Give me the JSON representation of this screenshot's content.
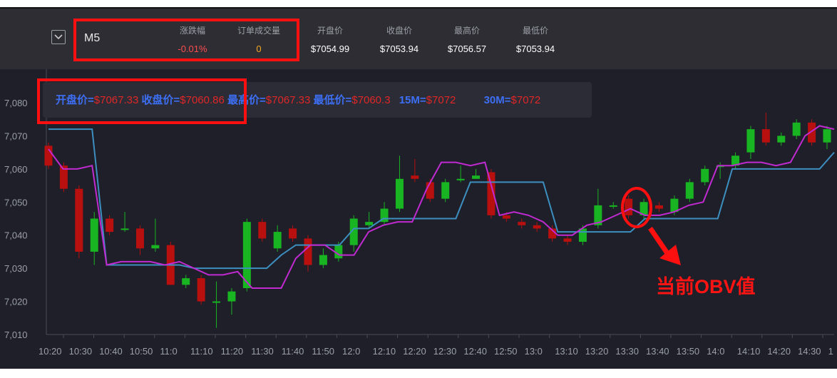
{
  "header": {
    "symbol": "M5",
    "stats": [
      {
        "label": "涨跌幅",
        "value": "-0.01%",
        "color": "#ff4d4f"
      },
      {
        "label": "订单成交量",
        "value": "0",
        "color": "#f5a623"
      },
      {
        "label": "开盘价",
        "value": "$7054.99",
        "color": "#ffffff"
      },
      {
        "label": "收盘价",
        "value": "$7053.94",
        "color": "#ffffff"
      },
      {
        "label": "最高价",
        "value": "$7056.57",
        "color": "#ffffff"
      },
      {
        "label": "最低价",
        "value": "$7053.94",
        "color": "#ffffff"
      }
    ]
  },
  "overlay": {
    "open_label": "开盘价=",
    "open_value": "$7067.33",
    "close_label": "收盘价=",
    "close_value": "$7060.86",
    "high_label": "最高价=",
    "high_value": "$7067.33",
    "low_label": "最低价=",
    "low_value": "$7060.3",
    "ma15_label": "15M=",
    "ma15_value": "$7072",
    "ma30_label": "30M=",
    "ma30_value": "$7072"
  },
  "annotation": "当前OBV值",
  "colors": {
    "up": "#19b421",
    "down": "#b80f0f",
    "line_purple": "#c02ad0",
    "line_blue": "#3d8fc0",
    "accent_red": "#ff1010"
  },
  "chart_data": {
    "type": "candlestick",
    "ylim": [
      7010,
      7082
    ],
    "yticks": [
      "7,010",
      "7,020",
      "7,030",
      "7,040",
      "7,050",
      "7,060",
      "7,070",
      "7,080"
    ],
    "xticks": [
      "10:20",
      "10:30",
      "10:40",
      "10:50",
      "11:0",
      "11:10",
      "11:20",
      "11:30",
      "11:40",
      "11:50",
      "12:0",
      "12:10",
      "12:20",
      "12:30",
      "12:40",
      "12:50",
      "13:0",
      "13:10",
      "13:20",
      "13:30",
      "13:40",
      "13:50",
      "14:0",
      "14:10",
      "14:20",
      "14:30",
      "1"
    ],
    "candles": [
      {
        "o": 7067,
        "c": 7061,
        "h": 7068,
        "l": 7060
      },
      {
        "o": 7061,
        "c": 7054,
        "h": 7062,
        "l": 7053
      },
      {
        "o": 7054,
        "c": 7035,
        "h": 7055,
        "l": 7033
      },
      {
        "o": 7035,
        "c": 7045,
        "h": 7047,
        "l": 7031
      },
      {
        "o": 7045,
        "c": 7041,
        "h": 7046,
        "l": 7040
      },
      {
        "o": 7042,
        "c": 7042,
        "h": 7047,
        "l": 7041
      },
      {
        "o": 7042,
        "c": 7036,
        "h": 7043,
        "l": 7034
      },
      {
        "o": 7036,
        "c": 7037,
        "h": 7045,
        "l": 7035
      },
      {
        "o": 7037,
        "c": 7025,
        "h": 7038,
        "l": 7025
      },
      {
        "o": 7025,
        "c": 7027,
        "h": 7028,
        "l": 7024
      },
      {
        "o": 7027,
        "c": 7020,
        "h": 7028,
        "l": 7019
      },
      {
        "o": 7020,
        "c": 7020,
        "h": 7026,
        "l": 7012
      },
      {
        "o": 7020,
        "c": 7023,
        "h": 7024,
        "l": 7016
      },
      {
        "o": 7024,
        "c": 7044,
        "h": 7045,
        "l": 7023
      },
      {
        "o": 7044,
        "c": 7039,
        "h": 7045,
        "l": 7038
      },
      {
        "o": 7036,
        "c": 7041,
        "h": 7043,
        "l": 7035
      },
      {
        "o": 7042,
        "c": 7039,
        "h": 7043,
        "l": 7038
      },
      {
        "o": 7039,
        "c": 7031,
        "h": 7040,
        "l": 7029
      },
      {
        "o": 7031,
        "c": 7034,
        "h": 7036,
        "l": 7030
      },
      {
        "o": 7033,
        "c": 7037,
        "h": 7038,
        "l": 7032
      },
      {
        "o": 7037,
        "c": 7045,
        "h": 7046,
        "l": 7035
      },
      {
        "o": 7043,
        "c": 7044,
        "h": 7047,
        "l": 7042
      },
      {
        "o": 7044,
        "c": 7048,
        "h": 7050,
        "l": 7043
      },
      {
        "o": 7048,
        "c": 7057,
        "h": 7064,
        "l": 7047
      },
      {
        "o": 7058,
        "c": 7057,
        "h": 7063,
        "l": 7056
      },
      {
        "o": 7056,
        "c": 7051,
        "h": 7057,
        "l": 7050
      },
      {
        "o": 7051,
        "c": 7056,
        "h": 7057,
        "l": 7050
      },
      {
        "o": 7057,
        "c": 7057,
        "h": 7061,
        "l": 7056
      },
      {
        "o": 7057,
        "c": 7058,
        "h": 7060,
        "l": 7057
      },
      {
        "o": 7059,
        "c": 7046,
        "h": 7060,
        "l": 7045
      },
      {
        "o": 7046,
        "c": 7045,
        "h": 7047,
        "l": 7044
      },
      {
        "o": 7044,
        "c": 7043,
        "h": 7045,
        "l": 7042
      },
      {
        "o": 7043,
        "c": 7042,
        "h": 7044,
        "l": 7041
      },
      {
        "o": 7042,
        "c": 7039,
        "h": 7043,
        "l": 7038
      },
      {
        "o": 7039,
        "c": 7038,
        "h": 7040,
        "l": 7037
      },
      {
        "o": 7038,
        "c": 7042,
        "h": 7043,
        "l": 7037
      },
      {
        "o": 7043,
        "c": 7049,
        "h": 7054,
        "l": 7042
      },
      {
        "o": 7049,
        "c": 7049,
        "h": 7050,
        "l": 7048
      },
      {
        "o": 7051,
        "c": 7046,
        "h": 7052,
        "l": 7045
      },
      {
        "o": 7046,
        "c": 7050,
        "h": 7051,
        "l": 7045
      },
      {
        "o": 7049,
        "c": 7048,
        "h": 7050,
        "l": 7047
      },
      {
        "o": 7047,
        "c": 7051,
        "h": 7052,
        "l": 7046
      },
      {
        "o": 7051,
        "c": 7056,
        "h": 7057,
        "l": 7050
      },
      {
        "o": 7056,
        "c": 7060,
        "h": 7061,
        "l": 7055
      },
      {
        "o": 7061,
        "c": 7061,
        "h": 7062,
        "l": 7057
      },
      {
        "o": 7061,
        "c": 7064,
        "h": 7065,
        "l": 7060
      },
      {
        "o": 7065,
        "c": 7072,
        "h": 7073,
        "l": 7063
      },
      {
        "o": 7072,
        "c": 7068,
        "h": 7077,
        "l": 7067
      },
      {
        "o": 7068,
        "c": 7070,
        "h": 7071,
        "l": 7067
      },
      {
        "o": 7070,
        "c": 7074,
        "h": 7075,
        "l": 7069
      },
      {
        "o": 7074,
        "c": 7068,
        "h": 7075,
        "l": 7067
      },
      {
        "o": 7068,
        "c": 7072,
        "h": 7073,
        "l": 7066
      }
    ],
    "ma_blue": [
      7072,
      7072,
      7072,
      7072,
      7031,
      7031,
      7031,
      7031,
      7031,
      7031,
      7030,
      7030,
      7030,
      7030,
      7030,
      7030,
      7034,
      7037,
      7037,
      7037,
      7037,
      7042,
      7042,
      7045,
      7045,
      7045,
      7045,
      7045,
      7045,
      7056,
      7056,
      7056,
      7056,
      7056,
      7056,
      7041,
      7041,
      7041,
      7041,
      7041,
      7041,
      7045,
      7045,
      7045,
      7045,
      7045,
      7045,
      7060,
      7060,
      7060,
      7060,
      7060,
      7060,
      7060,
      7065
    ],
    "ma_purple": [
      7066,
      7060,
      7060,
      7061,
      7031,
      7032,
      7032,
      7032,
      7031,
      7032,
      7030,
      7028,
      7028,
      7029,
      7024,
      7024,
      7024,
      7033,
      7037,
      7037,
      7034,
      7034,
      7041,
      7043,
      7044,
      7044,
      7054,
      7062,
      7062,
      7061,
      7062,
      7046,
      7047,
      7046,
      7044,
      7040,
      7040,
      7043,
      7044,
      7046,
      7048,
      7046,
      7046,
      7047,
      7049,
      7050,
      7061,
      7061,
      7062,
      7062,
      7061,
      7062,
      7070,
      7073,
      7072
    ]
  }
}
